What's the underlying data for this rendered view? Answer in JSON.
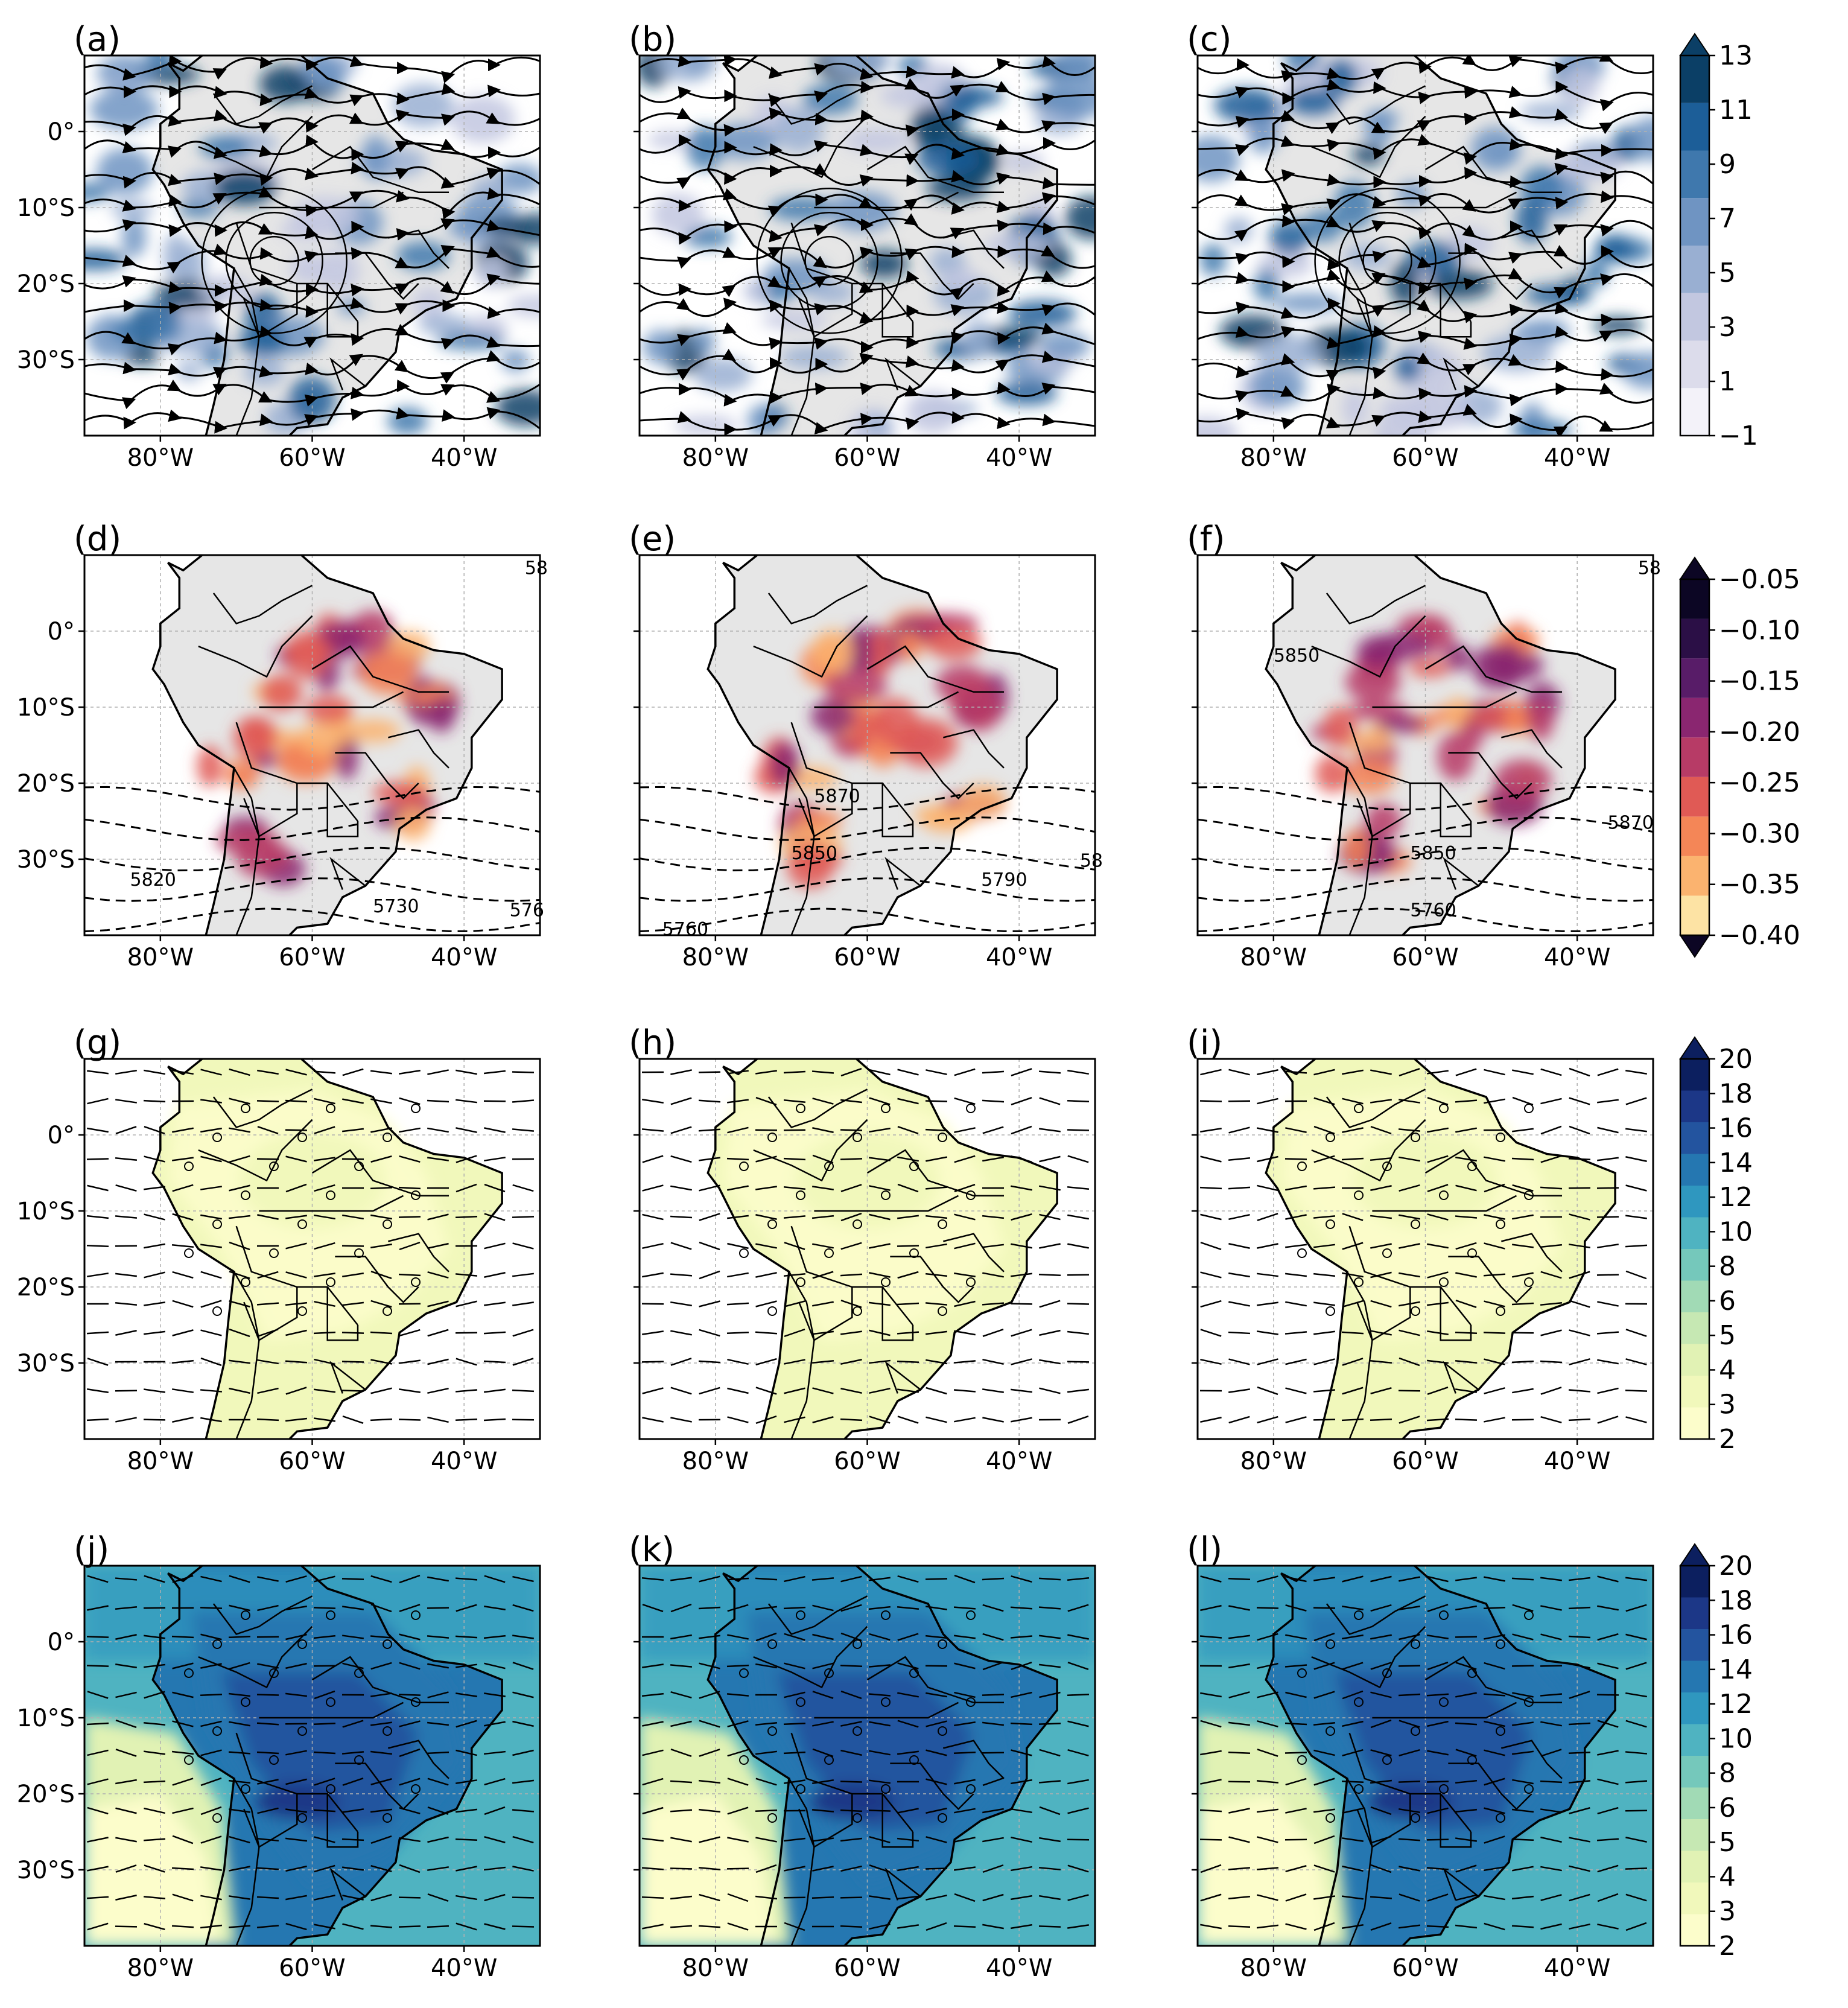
{
  "figure": {
    "panels": [
      "(a)",
      "(b)",
      "(c)",
      "(d)",
      "(e)",
      "(f)",
      "(g)",
      "(h)",
      "(i)",
      "(j)",
      "(k)",
      "(l)"
    ],
    "lat_ticks": [
      "0°",
      "10°S",
      "20°S",
      "30°S"
    ],
    "lon_ticks": [
      "80°W",
      "60°W",
      "40°W"
    ]
  },
  "chart_data": [
    {
      "type": "heatmap",
      "row": 1,
      "panels": [
        "(a)",
        "(b)",
        "(c)"
      ],
      "overlay": "streamlines",
      "xlim": [
        -90,
        -30
      ],
      "ylim": [
        -40,
        10
      ],
      "colorbar": {
        "ticks": [
          "13",
          "11",
          "9",
          "7",
          "5",
          "3",
          "1",
          "−1"
        ],
        "values": [
          13,
          11,
          9,
          7,
          5,
          3,
          1,
          -1
        ],
        "colors": [
          "#f3f2f9",
          "#dcdceb",
          "#c2c7e0",
          "#99afd2",
          "#6f94c2",
          "#3f78ad",
          "#1c5e98",
          "#0b3f66"
        ],
        "extend": "max"
      }
    },
    {
      "type": "heatmap",
      "row": 2,
      "panels": [
        "(d)",
        "(e)",
        "(f)"
      ],
      "overlay": "geopotential height contours (dashed)",
      "xlim": [
        -90,
        -30
      ],
      "ylim": [
        -40,
        10
      ],
      "contour_labels": {
        "(d)": [
          "5820",
          "5730",
          "576",
          "58"
        ],
        "(e)": [
          "5870",
          "5850",
          "5790",
          "5760",
          "58"
        ],
        "(f)": [
          "5850",
          "5870",
          "5850",
          "5760",
          "58"
        ]
      },
      "colorbar": {
        "ticks": [
          "−0.05",
          "−0.10",
          "−0.15",
          "−0.20",
          "−0.25",
          "−0.30",
          "−0.35",
          "−0.40"
        ],
        "values": [
          -0.05,
          -0.1,
          -0.15,
          -0.2,
          -0.25,
          -0.3,
          -0.35,
          -0.4
        ],
        "colors": [
          "#fde3a4",
          "#fbb36f",
          "#f48657",
          "#e05a55",
          "#b73b66",
          "#8a2670",
          "#581c68",
          "#2b0f46",
          "#0c0624"
        ],
        "extend": "both"
      }
    },
    {
      "type": "heatmap",
      "row": 3,
      "panels": [
        "(g)",
        "(h)",
        "(i)"
      ],
      "overlay": "wind barbs + significance circles",
      "xlim": [
        -90,
        -30
      ],
      "ylim": [
        -40,
        10
      ],
      "colorbar": {
        "ticks": [
          "20",
          "18",
          "16",
          "14",
          "12",
          "10",
          "8",
          "6",
          "5",
          "4",
          "3",
          "2"
        ],
        "values": [
          20,
          18,
          16,
          14,
          12,
          10,
          8,
          6,
          5,
          4,
          3,
          2
        ],
        "colors": [
          "#fcfdcb",
          "#f1f8bb",
          "#e1f2b4",
          "#c6e8b3",
          "#a1dab5",
          "#75c8bb",
          "#4fb3c1",
          "#2f97bf",
          "#2577b1",
          "#23549f",
          "#1c3787",
          "#0c1f5f"
        ],
        "extend": "max"
      }
    },
    {
      "type": "heatmap",
      "row": 4,
      "panels": [
        "(j)",
        "(k)",
        "(l)"
      ],
      "overlay": "wind barbs + significance circles",
      "xlim": [
        -90,
        -30
      ],
      "ylim": [
        -40,
        10
      ],
      "colorbar": {
        "ticks": [
          "20",
          "18",
          "16",
          "14",
          "12",
          "10",
          "8",
          "6",
          "5",
          "4",
          "3",
          "2"
        ],
        "values": [
          20,
          18,
          16,
          14,
          12,
          10,
          8,
          6,
          5,
          4,
          3,
          2
        ],
        "colors": [
          "#fcfdcb",
          "#f1f8bb",
          "#e1f2b4",
          "#c6e8b3",
          "#a1dab5",
          "#75c8bb",
          "#4fb3c1",
          "#2f97bf",
          "#2577b1",
          "#23549f",
          "#1c3787",
          "#0c1f5f"
        ],
        "extend": "max"
      }
    }
  ]
}
